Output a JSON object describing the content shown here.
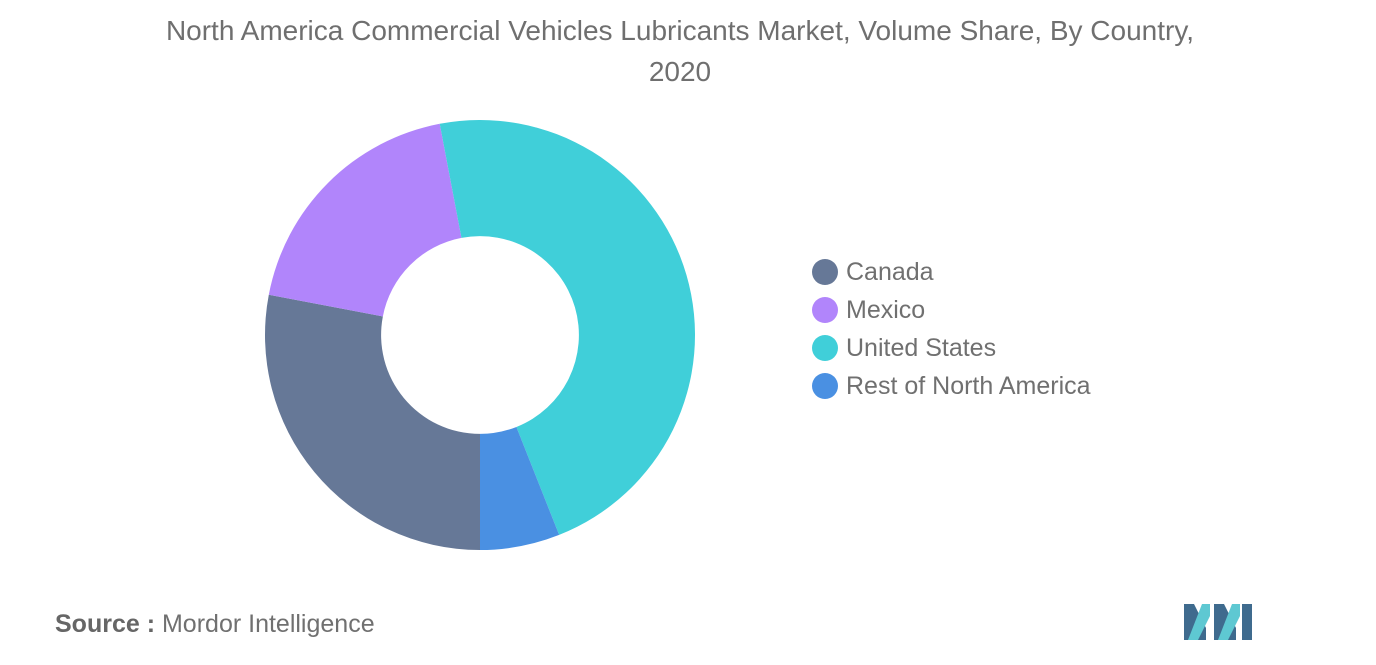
{
  "chart_data": {
    "type": "pie",
    "title": "North America Commercial Vehicles Lubricants Market, Volume Share, By Country, 2020",
    "categories": [
      "Canada",
      "Mexico",
      "United States",
      "Rest of North America"
    ],
    "values": [
      28,
      19,
      47,
      6
    ],
    "colors": [
      "#667897",
      "#b185fb",
      "#40cfd9",
      "#4a90e2"
    ],
    "inner_radius_ratio": 0.46,
    "start_angle_deg": 90,
    "legend": "right"
  },
  "source": {
    "label": "Source :",
    "text": "Mordor Intelligence"
  },
  "logo": {
    "icon": "mordor-intelligence-logo-icon",
    "colors": [
      "#3f6b8e",
      "#5ec8d2"
    ]
  }
}
